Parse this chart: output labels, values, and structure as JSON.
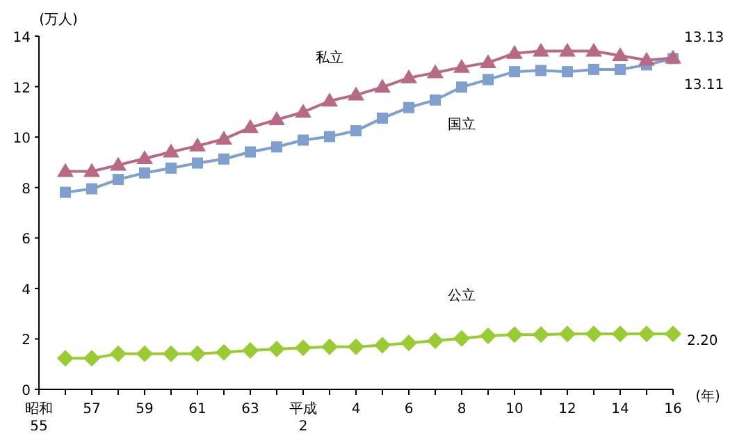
{
  "chart_data": {
    "type": "line",
    "ylabel": "(万人)",
    "xlabel": "(年)",
    "categories": [
      "昭和\n55",
      null,
      "57",
      null,
      "59",
      null,
      "61",
      null,
      "63",
      null,
      "平成\n2",
      null,
      "4",
      null,
      "6",
      null,
      "8",
      null,
      "10",
      null,
      "12",
      null,
      "14",
      null,
      "16"
    ],
    "ylim": [
      0,
      14
    ],
    "yticks": [
      0,
      2,
      4,
      6,
      8,
      10,
      12,
      14
    ],
    "grid": false,
    "series": [
      {
        "name": "私立",
        "color": "#b86a84",
        "marker": "triangle",
        "values": [
          null,
          8.64,
          8.64,
          8.89,
          9.15,
          9.41,
          9.65,
          9.92,
          10.38,
          10.69,
          10.99,
          11.43,
          11.67,
          11.98,
          12.35,
          12.55,
          12.77,
          12.95,
          13.32,
          13.41,
          13.41,
          13.41,
          13.23,
          13.05,
          13.13
        ],
        "value_labels": [
          null,
          null,
          null,
          null,
          null,
          null,
          null,
          null,
          null,
          null,
          null,
          null,
          null,
          null,
          null,
          null,
          null,
          null,
          null,
          null,
          null,
          null,
          null,
          null,
          "13.13"
        ]
      },
      {
        "name": "国立",
        "color": "#7f9fcf",
        "marker": "square",
        "values": [
          null,
          7.81,
          7.95,
          8.32,
          8.58,
          8.77,
          8.97,
          9.13,
          9.41,
          9.61,
          9.88,
          10.02,
          10.25,
          10.75,
          11.17,
          11.47,
          11.98,
          12.28,
          12.59,
          12.64,
          12.59,
          12.68,
          12.68,
          12.86,
          13.11
        ],
        "value_labels": [
          null,
          null,
          null,
          null,
          null,
          null,
          null,
          null,
          null,
          null,
          null,
          null,
          null,
          null,
          null,
          null,
          null,
          null,
          null,
          null,
          null,
          null,
          null,
          null,
          "13.11"
        ]
      },
      {
        "name": "公立",
        "color": "#99cc33",
        "marker": "diamond",
        "values": [
          null,
          1.23,
          1.23,
          1.41,
          1.41,
          1.41,
          1.41,
          1.47,
          1.54,
          1.6,
          1.65,
          1.69,
          1.69,
          1.75,
          1.84,
          1.93,
          2.02,
          2.12,
          2.17,
          2.17,
          2.2,
          2.2,
          2.2,
          2.2,
          2.2
        ],
        "value_labels": [
          null,
          null,
          null,
          null,
          null,
          null,
          null,
          null,
          null,
          null,
          null,
          null,
          null,
          null,
          null,
          null,
          null,
          null,
          null,
          null,
          null,
          null,
          null,
          null,
          "2.20"
        ]
      }
    ]
  }
}
